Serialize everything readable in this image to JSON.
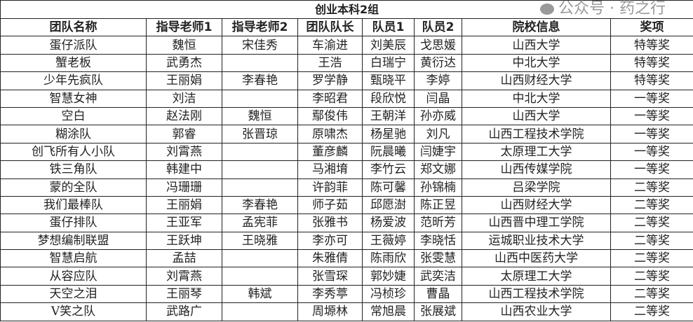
{
  "title": "创业本科2组",
  "headers": [
    "团队名称",
    "指导老师1",
    "指导老师2",
    "团队队长",
    "队员1",
    "队员2",
    "院校信息",
    "奖项"
  ],
  "rows": [
    [
      "蛋仔派队",
      "魏恒",
      "宋佳秀",
      "车渝进",
      "刘美辰",
      "戈思媛",
      "山西大学",
      "特等奖"
    ],
    [
      "蟹老板",
      "武勇杰",
      "",
      "王浩",
      "白瑞宁",
      "黄衍达",
      "中北大学",
      "特等奖"
    ],
    [
      "少年先疯队",
      "王丽娟",
      "李春艳",
      "罗学静",
      "甄晓平",
      "李婷",
      "山西财经大学",
      "特等奖"
    ],
    [
      "智慧女神",
      "刘洁",
      "",
      "李昭君",
      "段欣悦",
      "闫晶",
      "中北大学",
      "一等奖"
    ],
    [
      "空白",
      "赵法刚",
      "魏恒",
      "鄢俊伟",
      "王朝洋",
      "孙亦威",
      "山西大学",
      "一等奖"
    ],
    [
      "糊涂队",
      "郭睿",
      "张晋琼",
      "原啸杰",
      "杨星驰",
      "刘凡",
      "山西工程技术学院",
      "一等奖"
    ],
    [
      "创飞所有人小队",
      "刘霄燕",
      "",
      "董彦麟",
      "阮晨曦",
      "闫婕宇",
      "太原理工大学",
      "一等奖"
    ],
    [
      "铁三角队",
      "韩建中",
      "",
      "马湘堉",
      "李竹云",
      "郑文娜",
      "山西传媒学院",
      "一等奖"
    ],
    [
      "蒙的全队",
      "冯珊珊",
      "",
      "许韵菲",
      "陈可馨",
      "孙锦楠",
      "吕梁学院",
      "二等奖"
    ],
    [
      "我们最棒队",
      "王丽娟",
      "李春艳",
      "师子茹",
      "邱愿澍",
      "陈正昱",
      "山西财经大学",
      "二等奖"
    ],
    [
      "蛋仔排队",
      "王亚军",
      "孟宪菲",
      "张雅书",
      "杨爱波",
      "范昕芳",
      "山西晋中理工学院",
      "二等奖"
    ],
    [
      "梦想编制联盟",
      "王跃坤",
      "王晓雅",
      "李亦可",
      "王薇婷",
      "李晓恬",
      "运城职业技术大学",
      "二等奖"
    ],
    [
      "智慧启航",
      "孟喆",
      "",
      "朱雅倩",
      "陈雨欣",
      "张雯慧",
      "山西中医药大学",
      "二等奖"
    ],
    [
      "从容应队",
      "刘霄燕",
      "",
      "张雪琛",
      "郭妙婕",
      "武奕洁",
      "太原理工大学",
      "二等奖"
    ],
    [
      "天空之泪",
      "王丽琴",
      "韩斌",
      "李秀葶",
      "冯桢珍",
      "曹晶",
      "山西工程技术学院",
      "二等奖"
    ],
    [
      "V笑之队",
      "武路广",
      "",
      "周塬林",
      "常旭晨",
      "张展斌",
      "山西农业大学",
      "二等奖"
    ]
  ],
  "watermark": "公众号 · 药之行",
  "colors": {
    "border": "#222222",
    "text": "#222222",
    "background": "#ffffff"
  }
}
